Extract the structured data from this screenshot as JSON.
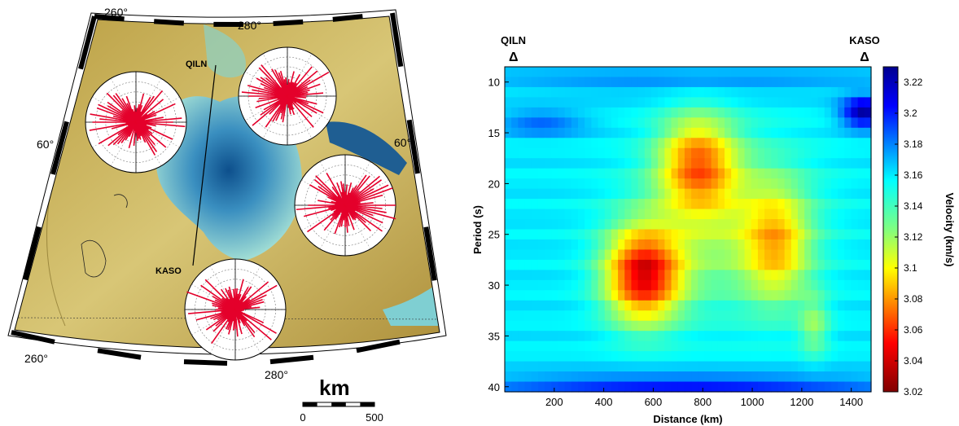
{
  "map": {
    "lon_labels_top": [
      "260°",
      "280°"
    ],
    "lon_labels_bottom": [
      "260°",
      "280°"
    ],
    "lat_labels": [
      "60°",
      "60°"
    ],
    "stations": [
      {
        "name": "QILN"
      },
      {
        "name": "KASO"
      }
    ],
    "scale": {
      "unit": "km",
      "start": "0",
      "end": "500"
    },
    "colors": {
      "land": "#c9b25a",
      "land_dark": "#8f7a2c",
      "water_shallow": "#8fd3cf",
      "water_deep": "#0d4f8c",
      "rose": "#e4002b"
    }
  },
  "chart_data": {
    "type": "heatmap",
    "title": "",
    "xlabel": "Distance (km)",
    "ylabel": "Period (s)",
    "colorbar_label": "Velocity (km/s)",
    "xlim": [
      0,
      1480
    ],
    "ylim": [
      40.5,
      8.5
    ],
    "x_ticks": [
      "200",
      "400",
      "600",
      "800",
      "1000",
      "1200",
      "1400"
    ],
    "y_ticks": [
      "10",
      "15",
      "20",
      "25",
      "30",
      "35",
      "40"
    ],
    "x_tick_values": [
      200,
      400,
      600,
      800,
      1000,
      1200,
      1400
    ],
    "y_tick_values": [
      10,
      15,
      20,
      25,
      30,
      35,
      40
    ],
    "colorbar_ticks": [
      "3.22",
      "3.2",
      "3.18",
      "3.16",
      "3.14",
      "3.12",
      "3.1",
      "3.08",
      "3.06",
      "3.04",
      "3.02"
    ],
    "colorbar_values": [
      3.22,
      3.2,
      3.18,
      3.16,
      3.14,
      3.12,
      3.1,
      3.08,
      3.06,
      3.04,
      3.02
    ],
    "vrange": [
      3.02,
      3.23
    ],
    "colormap": "jet_reversed",
    "station_labels": [
      {
        "name": "QILN",
        "symbol": "Δ",
        "distance_km": 0
      },
      {
        "name": "KASO",
        "symbol": "Δ",
        "distance_km": 1480
      }
    ]
  }
}
